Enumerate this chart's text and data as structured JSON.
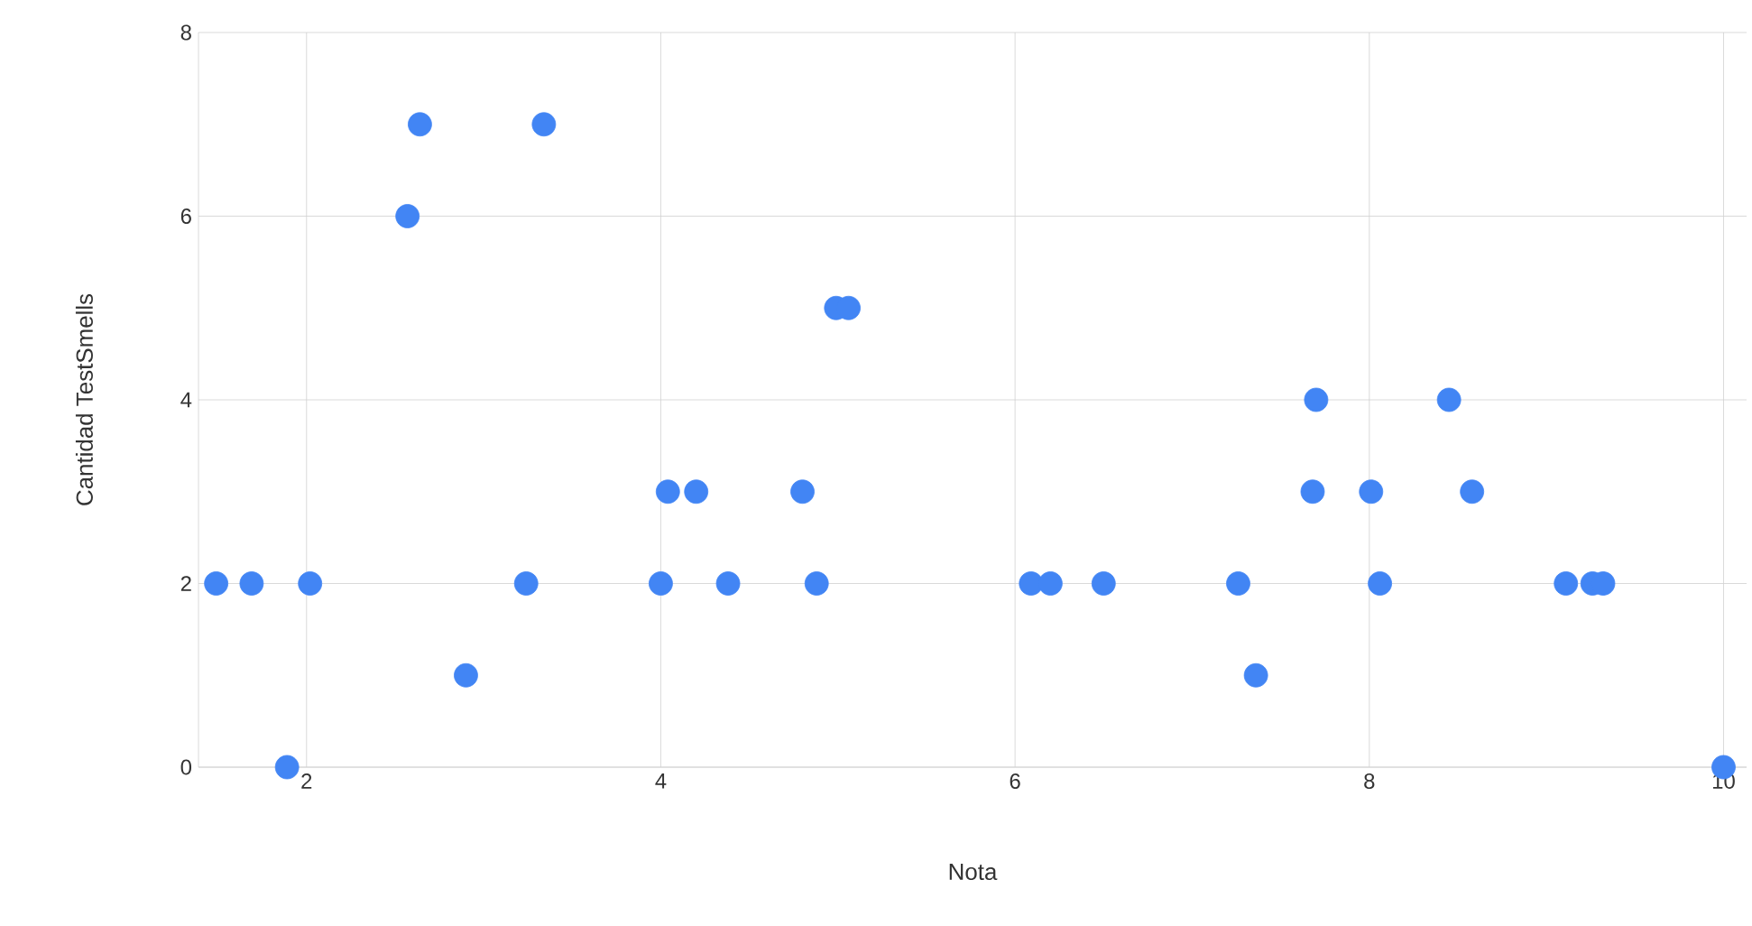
{
  "chart_data": {
    "type": "scatter",
    "xlabel": "Nota",
    "ylabel": "Cantidad TestSmells",
    "x": [
      1.49,
      1.69,
      1.89,
      2.02,
      2.57,
      2.64,
      2.9,
      3.24,
      3.34,
      4.0,
      4.04,
      4.2,
      4.38,
      4.8,
      4.88,
      4.99,
      5.06,
      6.09,
      6.2,
      6.5,
      7.26,
      7.36,
      7.68,
      7.7,
      8.01,
      8.06,
      8.45,
      8.58,
      9.11,
      9.26,
      9.32,
      10.0
    ],
    "values": [
      2,
      2,
      0,
      2,
      6,
      7,
      1,
      2,
      7,
      2,
      3,
      3,
      2,
      3,
      2,
      5,
      5,
      2,
      2,
      2,
      2,
      1,
      3,
      4,
      3,
      2,
      4,
      3,
      2,
      2,
      2,
      0
    ],
    "color": "#4285f4",
    "marker": "circle",
    "xlim": [
      1.39,
      10.13
    ],
    "ylim": [
      0,
      8
    ],
    "xticks": [
      2,
      4,
      6,
      8,
      10
    ],
    "yticks": [
      0,
      2,
      4,
      6,
      8
    ],
    "grid": true
  }
}
